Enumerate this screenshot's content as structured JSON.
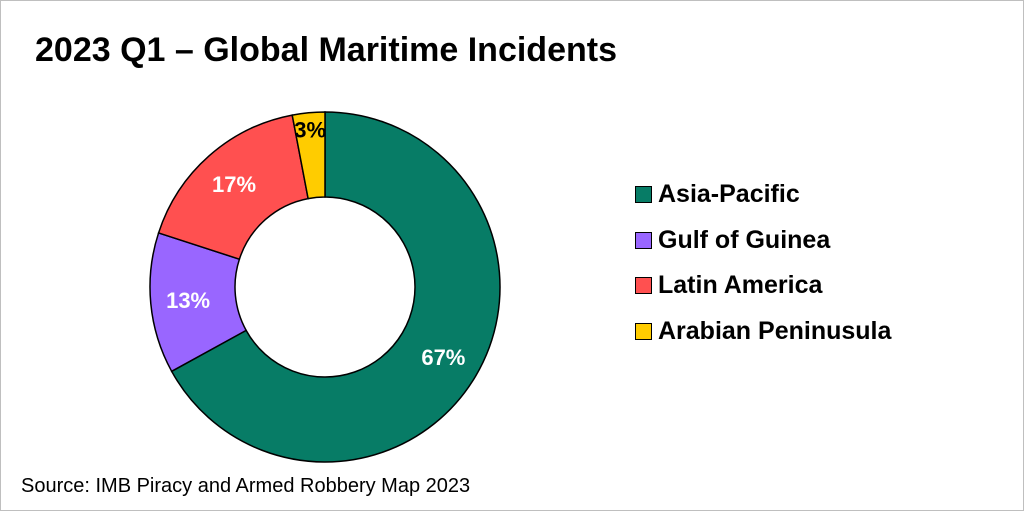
{
  "chart_data": {
    "type": "pie",
    "style": "donut",
    "title": "2023 Q1 – Global Maritime Incidents",
    "categories": [
      "Asia-Pacific",
      "Gulf of Guinea",
      "Latin America",
      "Arabian Peninusula"
    ],
    "values": [
      67,
      13,
      17,
      3
    ],
    "value_labels": [
      "67%",
      "13%",
      "17%",
      "3%"
    ],
    "colors": [
      "#077c66",
      "#9966ff",
      "#ff5050",
      "#ffcc00"
    ],
    "label_colors": [
      "#ffffff",
      "#ffffff",
      "#ffffff",
      "#000000"
    ],
    "legend_placement": "right",
    "source": "Source: IMB Piracy and Armed Robbery Map 2023"
  }
}
